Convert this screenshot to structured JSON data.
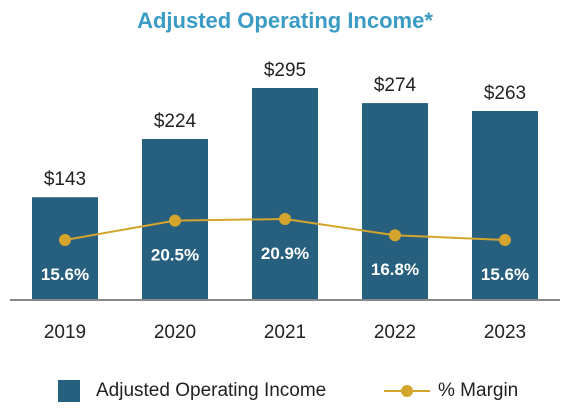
{
  "colors": {
    "title": "#3a9bc4",
    "bar": "#275f7e",
    "line": "#d4a52d",
    "axis": "#888888",
    "text": "#222222",
    "bar_label": "#ffffff"
  },
  "legend": {
    "bar_label": "Adjusted Operating Income",
    "line_label": "% Margin"
  },
  "chart_data": {
    "type": "bar",
    "title": "Adjusted Operating Income*",
    "categories": [
      "2019",
      "2020",
      "2021",
      "2022",
      "2023"
    ],
    "series": [
      {
        "name": "Adjusted Operating Income",
        "type": "bar",
        "values": [
          143,
          224,
          295,
          274,
          263
        ],
        "labels": [
          "$143",
          "$224",
          "$295",
          "$274",
          "$263"
        ]
      },
      {
        "name": "% Margin",
        "type": "line",
        "values": [
          15.6,
          20.5,
          20.9,
          16.8,
          15.6
        ],
        "labels": [
          "15.6%",
          "20.5%",
          "20.9%",
          "16.8%",
          "15.6%"
        ]
      }
    ],
    "ylim": [
      0,
      295
    ],
    "grid": false,
    "legend": "bottom"
  }
}
